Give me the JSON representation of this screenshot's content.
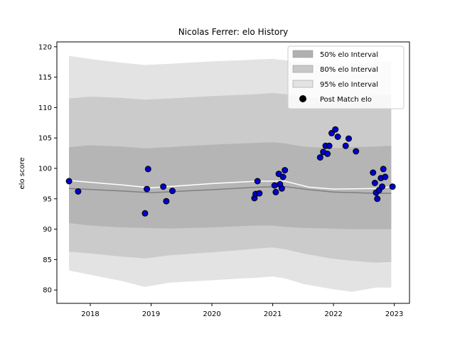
{
  "chart_data": {
    "type": "scatter",
    "title": "Nicolas Ferrer: elo History",
    "xlabel": "",
    "ylabel": "elo score",
    "xlim": [
      2017.45,
      2023.25
    ],
    "ylim": [
      77.8,
      120.8
    ],
    "x_ticks": [
      2018,
      2019,
      2020,
      2021,
      2022,
      2023
    ],
    "y_ticks": [
      80,
      85,
      90,
      95,
      100,
      105,
      110,
      115,
      120
    ],
    "grid": false,
    "legend_position": "top-right",
    "legend": [
      {
        "label": "50% elo Interval",
        "kind": "band",
        "color": "#b0b0b0"
      },
      {
        "label": "80% elo Interval",
        "kind": "band",
        "color": "#c8c8c8"
      },
      {
        "label": "95% elo Interval",
        "kind": "band",
        "color": "#e3e3e3"
      },
      {
        "label": "Post Match elo",
        "kind": "point",
        "color": "#000000"
      }
    ],
    "colors": {
      "band95": "#e3e3e3",
      "band80": "#cbcbcb",
      "band50": "#b5b5b5",
      "mean_line": "#7f7f7f",
      "median_line": "#ffffff",
      "points_fill": "#0000cc",
      "points_edge": "#000000"
    },
    "bands": {
      "x": [
        2017.65,
        2018.0,
        2018.5,
        2018.9,
        2019.3,
        2020.0,
        2020.5,
        2020.72,
        2021.0,
        2021.2,
        2021.5,
        2021.95,
        2022.3,
        2022.7,
        2022.95
      ],
      "interval_95": {
        "upper": [
          118.5,
          118.0,
          117.4,
          117.0,
          117.2,
          117.6,
          117.8,
          117.9,
          118.0,
          117.8,
          117.5,
          117.2,
          117.3,
          117.5,
          117.6
        ],
        "lower": [
          83.2,
          82.5,
          81.5,
          80.5,
          81.2,
          81.6,
          81.9,
          82.0,
          82.2,
          81.9,
          81.0,
          80.2,
          79.7,
          80.4,
          80.4
        ]
      },
      "interval_80": {
        "upper": [
          111.5,
          111.8,
          111.6,
          111.3,
          111.5,
          111.9,
          112.1,
          112.2,
          112.4,
          112.2,
          111.8,
          111.5,
          111.9,
          112.0,
          112.1
        ],
        "lower": [
          86.3,
          86.0,
          85.5,
          85.2,
          85.7,
          86.2,
          86.6,
          86.8,
          87.0,
          86.7,
          86.0,
          85.2,
          84.8,
          84.5,
          84.6
        ]
      },
      "interval_50": {
        "upper": [
          103.5,
          103.8,
          103.6,
          103.3,
          103.5,
          103.9,
          104.1,
          104.2,
          104.3,
          104.1,
          103.6,
          103.3,
          103.5,
          103.6,
          103.7
        ],
        "lower": [
          91.0,
          90.6,
          90.3,
          90.2,
          90.1,
          90.3,
          90.5,
          90.6,
          90.6,
          90.4,
          90.2,
          90.1,
          90.0,
          90.0,
          90.0
        ]
      }
    },
    "mean_line": {
      "x": [
        2017.65,
        2018.5,
        2019.0,
        2020.0,
        2020.75,
        2021.2,
        2021.6,
        2022.0,
        2022.7,
        2022.95
      ],
      "y": [
        96.7,
        96.3,
        96.0,
        96.5,
        96.9,
        97.0,
        96.5,
        96.1,
        95.9,
        95.9
      ]
    },
    "median_line": {
      "x": [
        2017.65,
        2018.5,
        2019.0,
        2020.0,
        2020.75,
        2021.2,
        2021.6,
        2022.0,
        2022.7,
        2022.95
      ],
      "y": [
        98.0,
        97.3,
        96.8,
        97.5,
        97.9,
        97.9,
        96.9,
        96.6,
        96.7,
        97.0
      ]
    },
    "series": [
      {
        "name": "Post Match elo",
        "points": [
          {
            "x": 2017.65,
            "y": 97.9
          },
          {
            "x": 2017.8,
            "y": 96.2
          },
          {
            "x": 2018.9,
            "y": 92.6
          },
          {
            "x": 2018.93,
            "y": 96.6
          },
          {
            "x": 2018.95,
            "y": 99.9
          },
          {
            "x": 2019.2,
            "y": 97.0
          },
          {
            "x": 2019.25,
            "y": 94.6
          },
          {
            "x": 2019.35,
            "y": 96.3
          },
          {
            "x": 2020.7,
            "y": 95.1
          },
          {
            "x": 2020.72,
            "y": 95.8
          },
          {
            "x": 2020.75,
            "y": 97.9
          },
          {
            "x": 2020.78,
            "y": 95.9
          },
          {
            "x": 2021.03,
            "y": 97.2
          },
          {
            "x": 2021.05,
            "y": 96.1
          },
          {
            "x": 2021.1,
            "y": 99.1
          },
          {
            "x": 2021.12,
            "y": 97.4
          },
          {
            "x": 2021.15,
            "y": 96.7
          },
          {
            "x": 2021.17,
            "y": 98.6
          },
          {
            "x": 2021.2,
            "y": 99.7
          },
          {
            "x": 2021.78,
            "y": 101.8
          },
          {
            "x": 2021.83,
            "y": 102.7
          },
          {
            "x": 2021.87,
            "y": 103.7
          },
          {
            "x": 2021.9,
            "y": 102.4
          },
          {
            "x": 2021.93,
            "y": 103.7
          },
          {
            "x": 2021.97,
            "y": 105.8
          },
          {
            "x": 2022.03,
            "y": 106.4
          },
          {
            "x": 2022.07,
            "y": 105.2
          },
          {
            "x": 2022.2,
            "y": 103.7
          },
          {
            "x": 2022.25,
            "y": 104.9
          },
          {
            "x": 2022.37,
            "y": 102.8
          },
          {
            "x": 2022.65,
            "y": 99.3
          },
          {
            "x": 2022.68,
            "y": 97.6
          },
          {
            "x": 2022.7,
            "y": 96.0
          },
          {
            "x": 2022.72,
            "y": 95.0
          },
          {
            "x": 2022.75,
            "y": 96.4
          },
          {
            "x": 2022.78,
            "y": 98.4
          },
          {
            "x": 2022.8,
            "y": 97.0
          },
          {
            "x": 2022.82,
            "y": 99.9
          },
          {
            "x": 2022.85,
            "y": 98.6
          },
          {
            "x": 2022.97,
            "y": 97.0
          }
        ]
      }
    ]
  }
}
